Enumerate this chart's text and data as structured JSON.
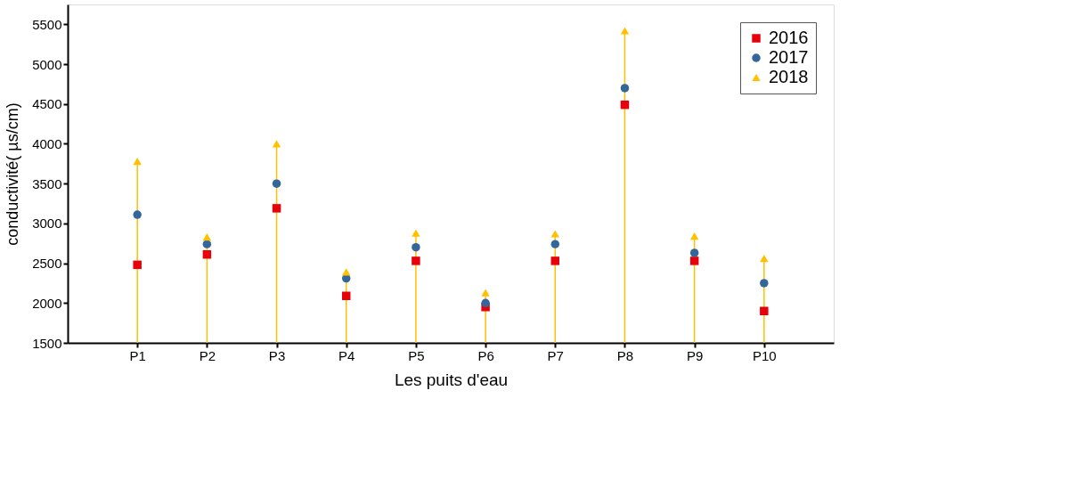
{
  "chart_data": {
    "type": "scatter",
    "xlabel": "Les puits d'eau",
    "ylabel": "conductivité( µs/cm)",
    "categories": [
      "P1",
      "P2",
      "P3",
      "P4",
      "P5",
      "P6",
      "P7",
      "P8",
      "P9",
      "P10"
    ],
    "series": [
      {
        "name": "2016",
        "color": "#e8000b",
        "marker": "square",
        "values": [
          2480,
          2610,
          3190,
          2090,
          2530,
          1950,
          2530,
          4490,
          2530,
          1900
        ]
      },
      {
        "name": "2017",
        "color": "#336699",
        "marker": "circle",
        "values": [
          3110,
          2740,
          3500,
          2310,
          2700,
          2000,
          2740,
          4700,
          2630,
          2250
        ]
      },
      {
        "name": "2018",
        "type": "lollipop",
        "color": "#ffc000",
        "marker": "triangle",
        "values": [
          3780,
          2830,
          4000,
          2390,
          2880,
          2130,
          2870,
          5420,
          2840,
          2560
        ]
      }
    ],
    "ylim": [
      1500,
      5750
    ],
    "yticks": [
      1500,
      2000,
      2500,
      3000,
      3500,
      4000,
      4500,
      5000,
      5500
    ],
    "grid": false,
    "legend": "top right"
  }
}
